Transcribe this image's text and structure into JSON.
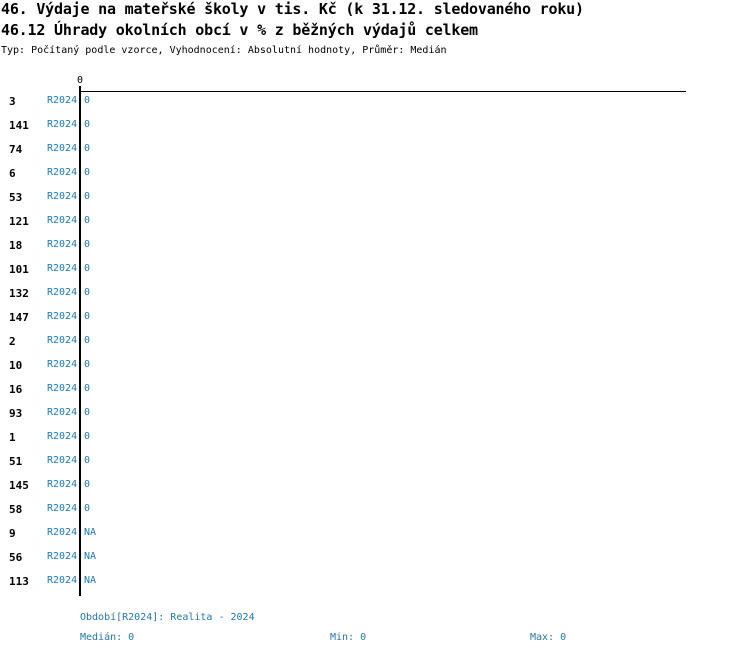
{
  "title": "46. Výdaje na mateřské školy v tis. Kč (k 31.12. sledovaného roku)",
  "subtitle": "46.12 Úhrady okolních obcí v % z běžných výdajů celkem",
  "info": "Typ: Počítaný podle vzorce, Vyhodnocení: Absolutní hodnoty, Průměr: Medián",
  "colors": {
    "accent": "#1f77b4",
    "axis": "#000000"
  },
  "chart_data": {
    "type": "bar",
    "orientation": "horizontal",
    "x_tick_labels": [
      "0"
    ],
    "period": "R2024",
    "categories": [
      "3",
      "141",
      "74",
      "6",
      "53",
      "121",
      "18",
      "101",
      "132",
      "147",
      "2",
      "10",
      "16",
      "93",
      "1",
      "51",
      "145",
      "58",
      "9",
      "56",
      "113"
    ],
    "value_labels": [
      "0",
      "0",
      "0",
      "0",
      "0",
      "0",
      "0",
      "0",
      "0",
      "0",
      "0",
      "0",
      "0",
      "0",
      "0",
      "0",
      "0",
      "0",
      "NA",
      "NA",
      "NA"
    ],
    "values": [
      0,
      0,
      0,
      0,
      0,
      0,
      0,
      0,
      0,
      0,
      0,
      0,
      0,
      0,
      0,
      0,
      0,
      0,
      null,
      null,
      null
    ]
  },
  "footer": {
    "period_label": "Období[R2024]: Realita - 2024",
    "median": "Medián: 0",
    "min": "Min: 0",
    "max": "Max: 0"
  }
}
